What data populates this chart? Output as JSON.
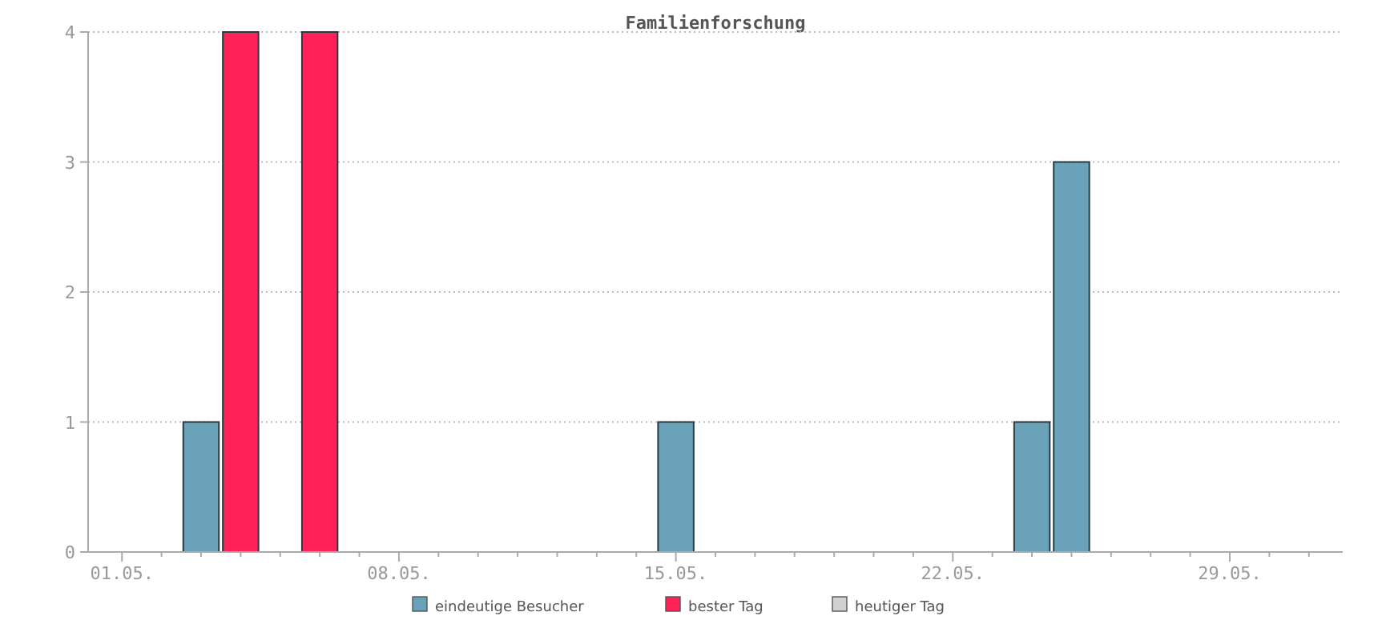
{
  "chart_data": {
    "type": "bar",
    "title": "Familienforschung",
    "categories": [
      "01.05.",
      null,
      null,
      null,
      null,
      null,
      null,
      "08.05.",
      null,
      null,
      null,
      null,
      null,
      null,
      "15.05.",
      null,
      null,
      null,
      null,
      null,
      null,
      "22.05.",
      null,
      null,
      null,
      null,
      null,
      null,
      "29.05.",
      null,
      null
    ],
    "series": [
      {
        "name": "eindeutige Besucher",
        "color": "#6aa3b9",
        "values": [
          null,
          null,
          1,
          null,
          null,
          null,
          null,
          null,
          null,
          null,
          null,
          null,
          null,
          null,
          1,
          null,
          null,
          null,
          null,
          null,
          null,
          null,
          null,
          1,
          3,
          null,
          null,
          null,
          null,
          null,
          null
        ]
      },
      {
        "name": "bester Tag",
        "color": "#ff2158",
        "values": [
          null,
          null,
          null,
          4,
          null,
          4,
          null,
          null,
          null,
          null,
          null,
          null,
          null,
          null,
          null,
          null,
          null,
          null,
          null,
          null,
          null,
          null,
          null,
          null,
          null,
          null,
          null,
          null,
          null,
          null,
          null
        ]
      },
      {
        "name": "heutiger Tag",
        "color": "#d0d0d0",
        "values": [
          null,
          null,
          null,
          null,
          null,
          null,
          null,
          null,
          null,
          null,
          null,
          null,
          null,
          null,
          null,
          null,
          null,
          null,
          null,
          null,
          null,
          null,
          null,
          null,
          null,
          null,
          null,
          null,
          null,
          null,
          null
        ]
      }
    ],
    "ylim": [
      0,
      4
    ],
    "yticks": [
      0,
      1,
      2,
      3,
      4
    ],
    "grid": "y",
    "legend": "bottom"
  }
}
